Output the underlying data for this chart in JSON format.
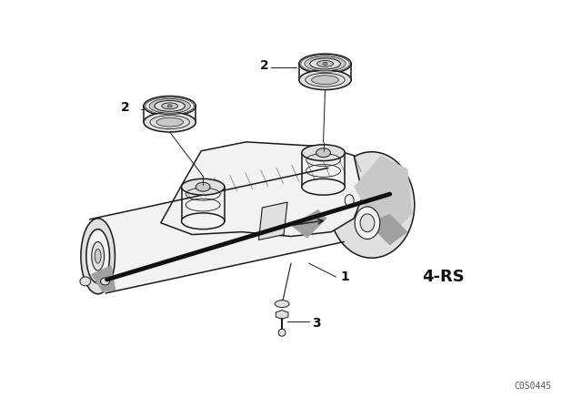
{
  "background_color": "#ffffff",
  "fig_width": 6.4,
  "fig_height": 4.48,
  "dpi": 100,
  "part_code": "C0S0445",
  "variant_label": "4-RS",
  "line_color": "#1a1a1a",
  "fill_light": "#f2f2f2",
  "fill_mid": "#e0e0e0",
  "fill_dark": "#c8c8c8",
  "fill_shadow": "#a0a0a0",
  "label_fontsize": 10,
  "variant_fontsize": 13,
  "code_fontsize": 7
}
